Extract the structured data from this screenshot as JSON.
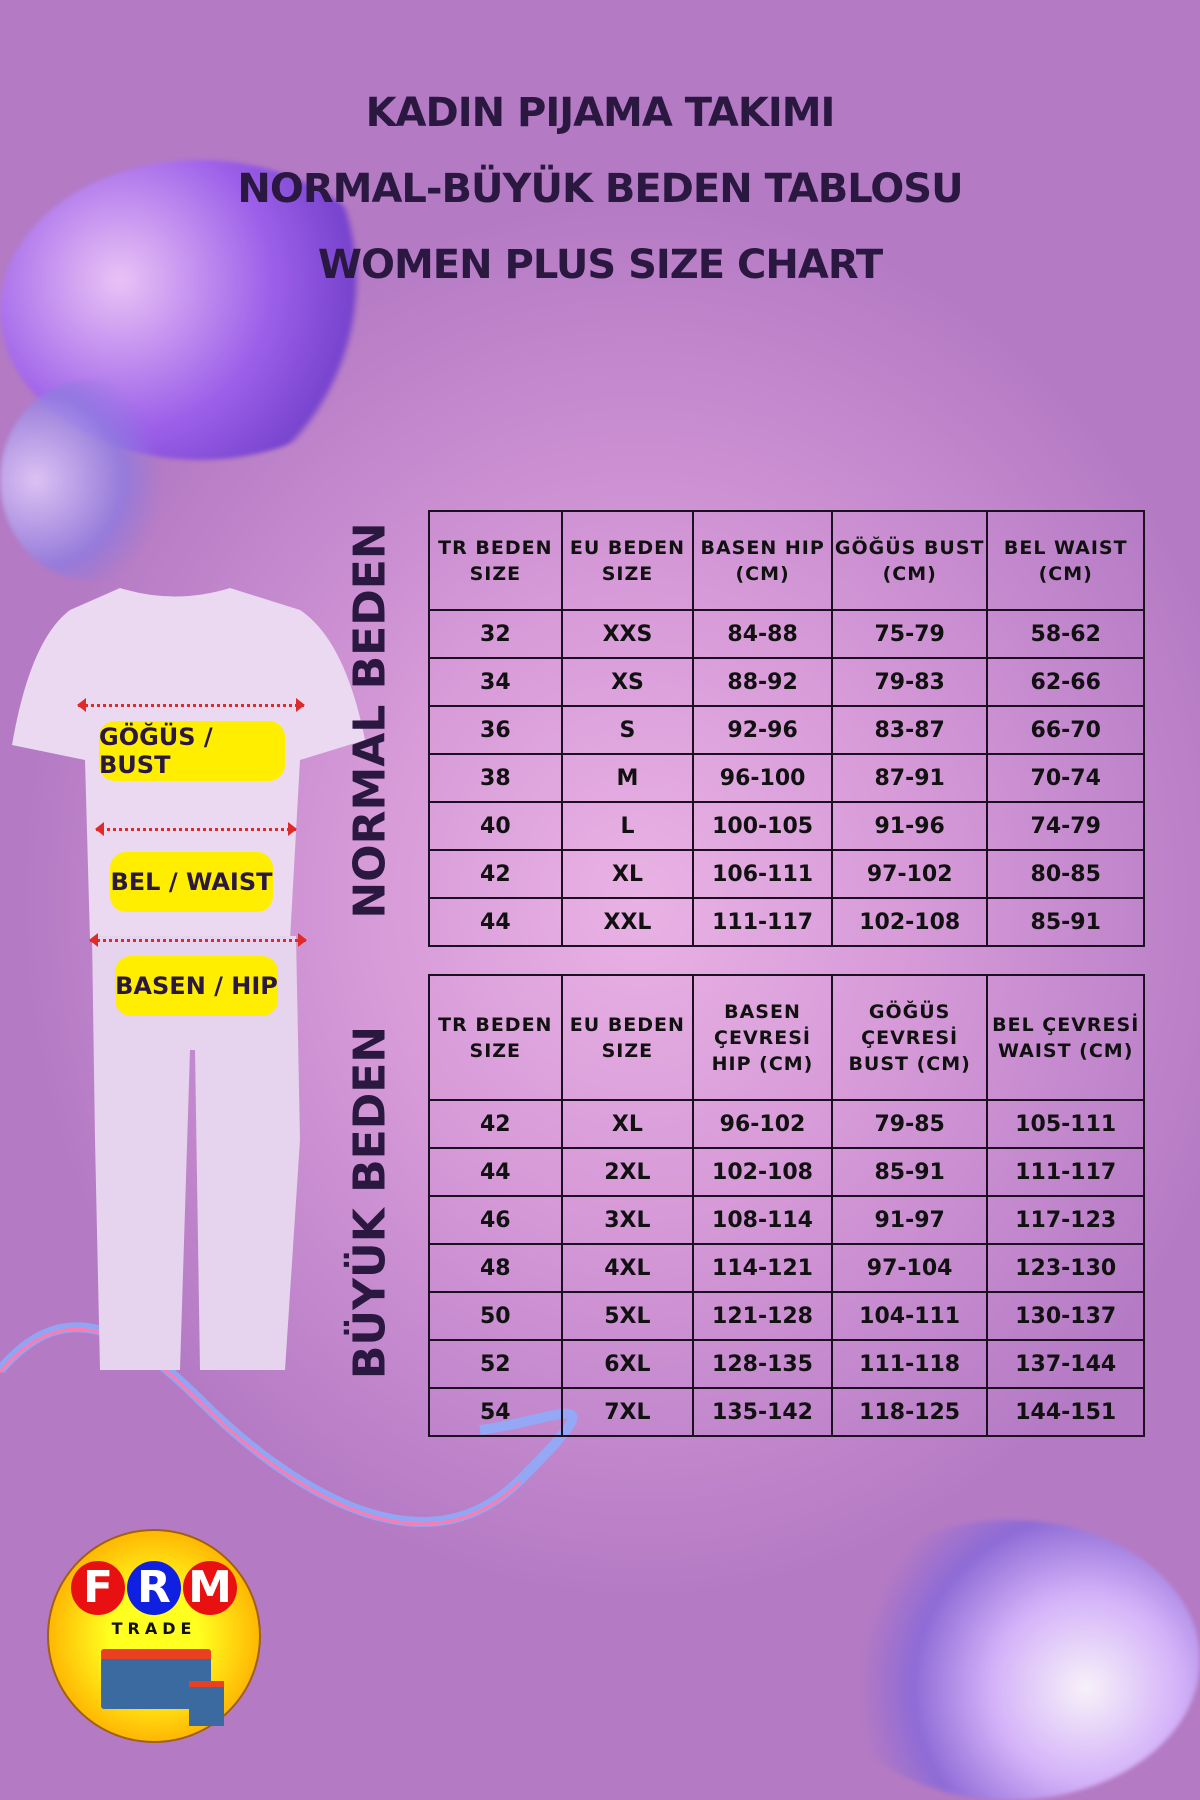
{
  "title": {
    "line1": "KADIN PIJAMA TAKIMI",
    "line2": "NORMAL-BÜYÜK BEDEN TABLOSU",
    "line3": "WOMEN PLUS SIZE CHART"
  },
  "sections": {
    "normal": "NORMAL BEDEN",
    "plus": "BÜYÜK BEDEN"
  },
  "garment_labels": {
    "bust": "GÖĞÜS / BUST",
    "waist": "BEL / WAIST",
    "hip": "BASEN / HIP"
  },
  "normal_table": {
    "headers": [
      "TR BEDEN SIZE",
      "EU BEDEN SIZE",
      "BASEN HIP (CM)",
      "GÖĞÜS BUST (CM)",
      "BEL WAIST (CM)"
    ],
    "rows": [
      [
        "32",
        "XXS",
        "84-88",
        "75-79",
        "58-62"
      ],
      [
        "34",
        "XS",
        "88-92",
        "79-83",
        "62-66"
      ],
      [
        "36",
        "S",
        "92-96",
        "83-87",
        "66-70"
      ],
      [
        "38",
        "M",
        "96-100",
        "87-91",
        "70-74"
      ],
      [
        "40",
        "L",
        "100-105",
        "91-96",
        "74-79"
      ],
      [
        "42",
        "XL",
        "106-111",
        "97-102",
        "80-85"
      ],
      [
        "44",
        "XXL",
        "111-117",
        "102-108",
        "85-91"
      ]
    ]
  },
  "plus_table": {
    "headers": [
      "TR BEDEN SIZE",
      "EU BEDEN SIZE",
      "BASEN ÇEVRESİ HIP (CM)",
      "GÖĞÜS ÇEVRESİ BUST (CM)",
      "BEL ÇEVRESİ WAIST (CM)"
    ],
    "rows": [
      [
        "42",
        "XL",
        "96-102",
        "79-85",
        "105-111"
      ],
      [
        "44",
        "2XL",
        "102-108",
        "85-91",
        "111-117"
      ],
      [
        "46",
        "3XL",
        "108-114",
        "91-97",
        "117-123"
      ],
      [
        "48",
        "4XL",
        "114-121",
        "97-104",
        "123-130"
      ],
      [
        "50",
        "5XL",
        "121-128",
        "104-111",
        "130-137"
      ],
      [
        "52",
        "6XL",
        "128-135",
        "111-118",
        "137-144"
      ],
      [
        "54",
        "7XL",
        "135-142",
        "118-125",
        "144-151"
      ]
    ]
  },
  "logo": {
    "letters": [
      "F",
      "R",
      "M"
    ],
    "sub": "TRADE"
  },
  "colors": {
    "background": "#c98fd3",
    "text": "#2a1840",
    "label_bg": "#ffee00",
    "arrow": "#e02a2a"
  }
}
